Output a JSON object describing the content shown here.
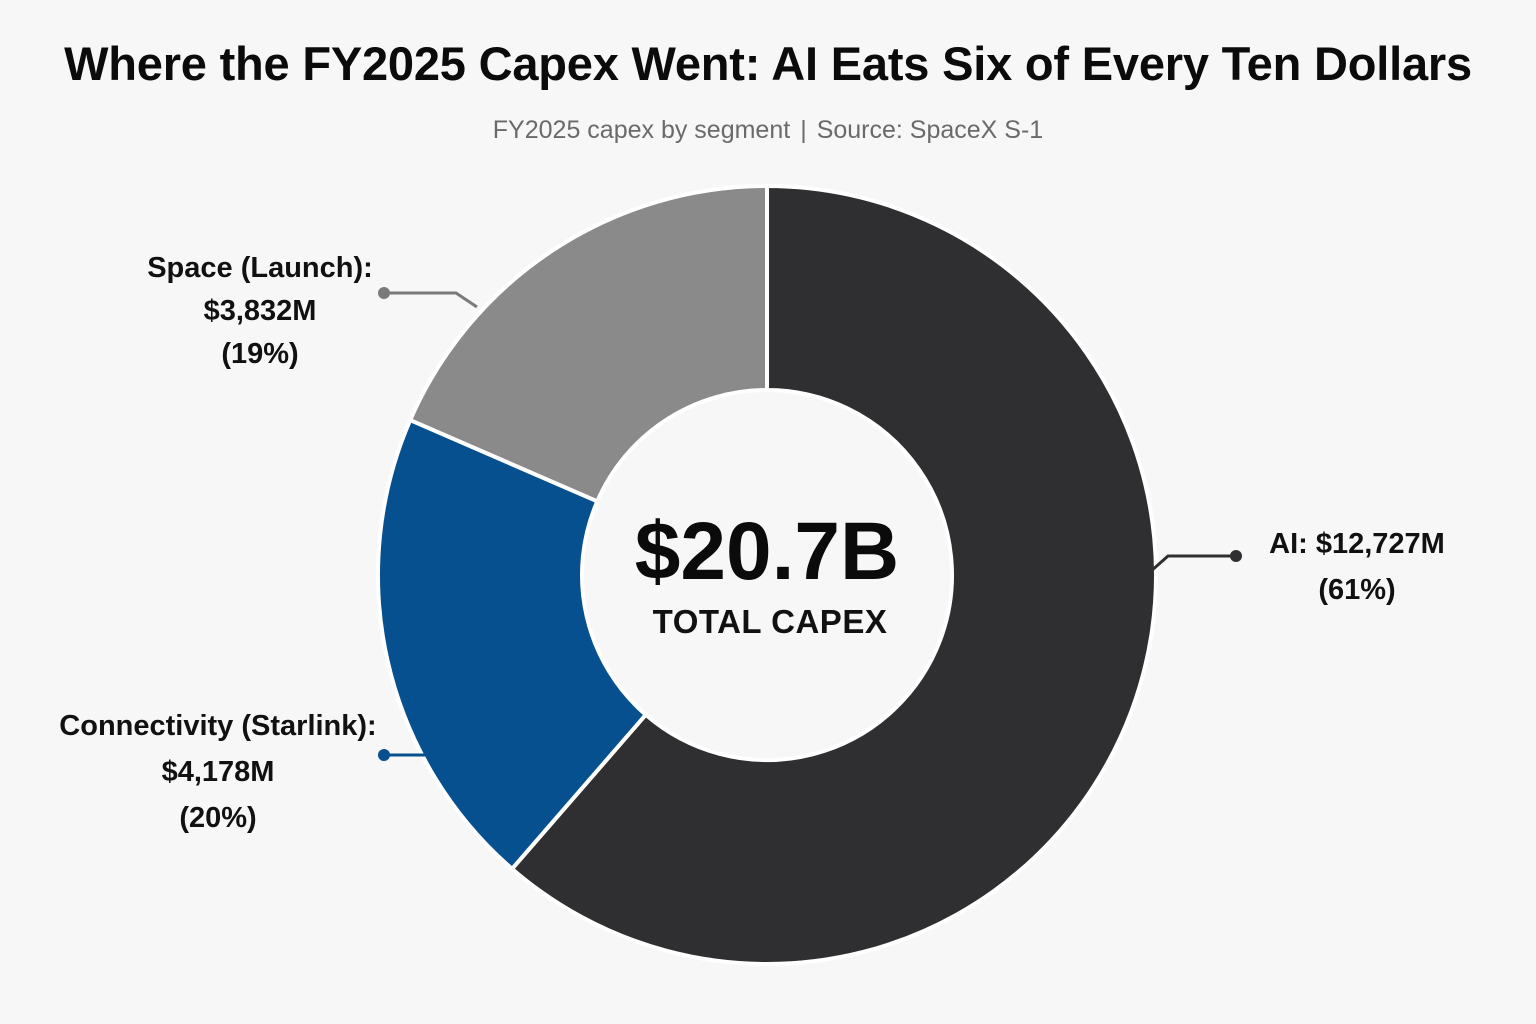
{
  "header": {
    "title": "Where the FY2025 Capex Went: AI Eats Six of Every Ten Dollars",
    "subtitle_left": "FY2025 capex by segment",
    "subtitle_sep": "|",
    "subtitle_right": "Source: SpaceX S-1"
  },
  "chart_data": {
    "type": "pie",
    "style": "donut",
    "title": "Where the FY2025 Capex Went: AI Eats Six of Every Ten Dollars",
    "subtitle": "FY2025 capex by segment | Source: SpaceX S-1",
    "center": {
      "value": "$20.7B",
      "label": "TOTAL CAPEX"
    },
    "slices": [
      {
        "name": "AI",
        "value": 12727,
        "percent": 61,
        "color": "#2f2f31",
        "label_lines": [
          "AI: $12,727M",
          "(61%)"
        ]
      },
      {
        "name": "Connectivity (Starlink)",
        "value": 4178,
        "percent": 20,
        "color": "#06508f",
        "label_lines": [
          "Connectivity (Starlink):",
          "$4,178M",
          "(20%)"
        ]
      },
      {
        "name": "Space (Launch)",
        "value": 3832,
        "percent": 19,
        "color": "#8a8a8b",
        "label_lines": [
          "Space (Launch):",
          "$3,832M",
          "(19%)"
        ]
      }
    ]
  }
}
